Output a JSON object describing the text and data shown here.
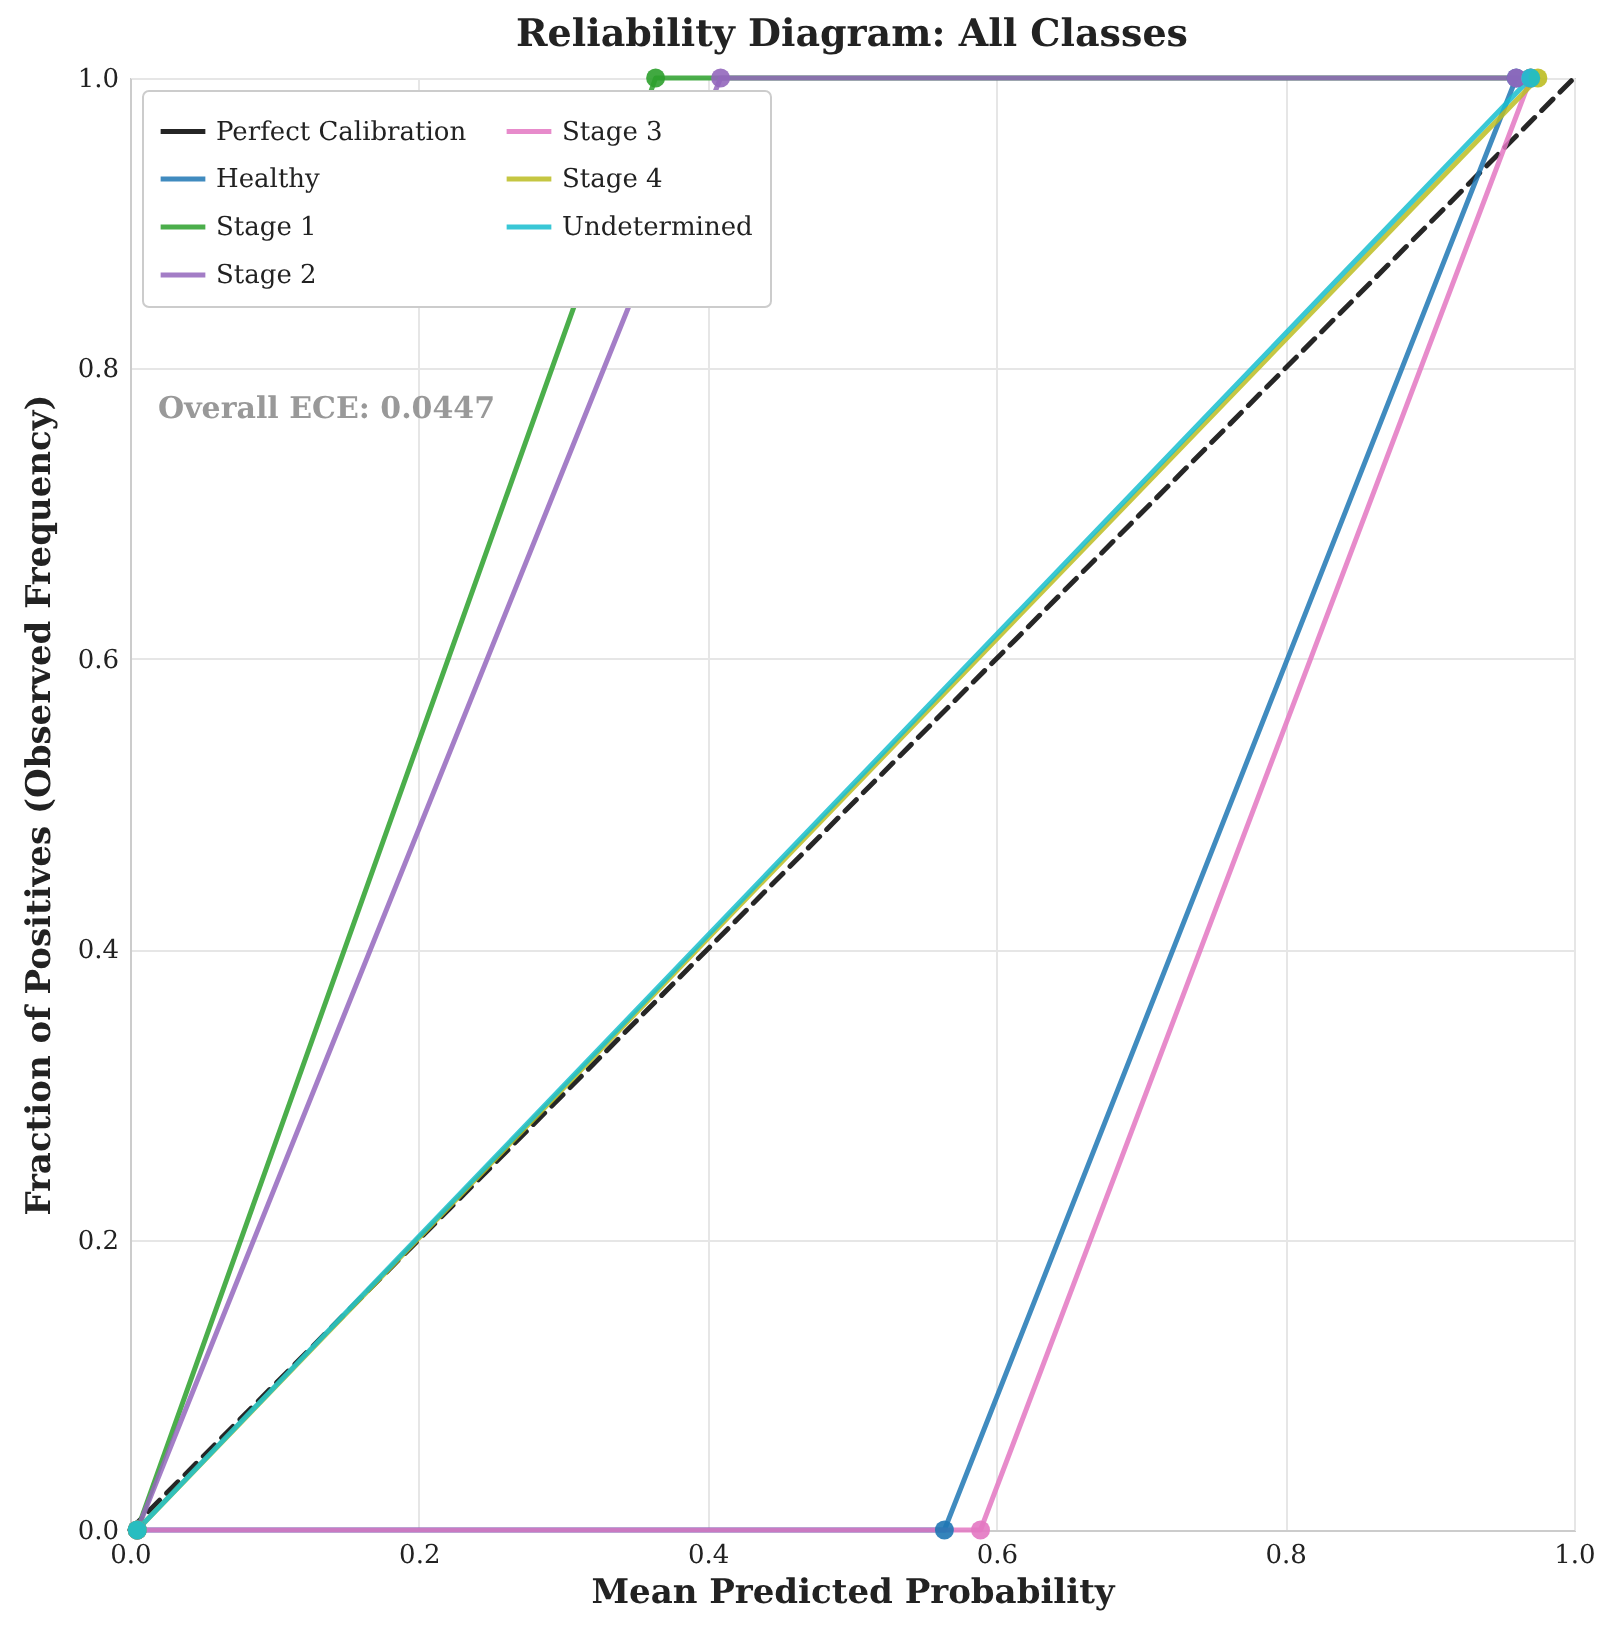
{
  "chart_data": {
    "type": "line",
    "title": "Reliability Diagram: All Classes",
    "xlabel": "Mean Predicted Probability",
    "ylabel": "Fraction of Positives (Observed Frequency)",
    "xlim": [
      0,
      1
    ],
    "ylim": [
      0,
      1
    ],
    "xticks": [
      {
        "value": 0,
        "label": "0.0"
      },
      0.2,
      0.4,
      0.6,
      0.8,
      {
        "value": 1,
        "label": "1.0"
      }
    ],
    "yticks": [
      {
        "value": 0,
        "label": "0.0"
      },
      0.2,
      0.4,
      0.6,
      0.8,
      {
        "value": 1,
        "label": "1.0"
      }
    ],
    "grid": true,
    "legend": "top left",
    "marker": "circle",
    "annotations": [
      "Overall ECE: 0.0447"
    ],
    "series": [
      {
        "name": "Perfect Calibration",
        "color": "#000000",
        "line_style": "dashed",
        "marker": "none",
        "x": [
          0,
          1
        ],
        "values": [
          0,
          1
        ]
      },
      {
        "name": "Healthy",
        "color": "#1f77b4",
        "x": [
          0.005,
          0.564,
          0.96
        ],
        "values": [
          0,
          0,
          1
        ]
      },
      {
        "name": "Stage 1",
        "color": "#2ca02c",
        "x": [
          0.005,
          0.364,
          0.97
        ],
        "values": [
          0,
          1,
          1
        ]
      },
      {
        "name": "Stage 2",
        "color": "#9467bd",
        "x": [
          0.005,
          0.409,
          0.96
        ],
        "values": [
          0,
          1,
          1
        ]
      },
      {
        "name": "Stage 3",
        "color": "#e377c2",
        "x": [
          0.005,
          0.589,
          0.97
        ],
        "values": [
          0,
          0,
          1
        ]
      },
      {
        "name": "Stage 4",
        "color": "#bcbd22",
        "x": [
          0.005,
          0.975
        ],
        "values": [
          0,
          1
        ]
      },
      {
        "name": "Undetermined",
        "color": "#17becf",
        "x": [
          0.005,
          0.97
        ],
        "values": [
          0,
          1
        ]
      }
    ]
  }
}
